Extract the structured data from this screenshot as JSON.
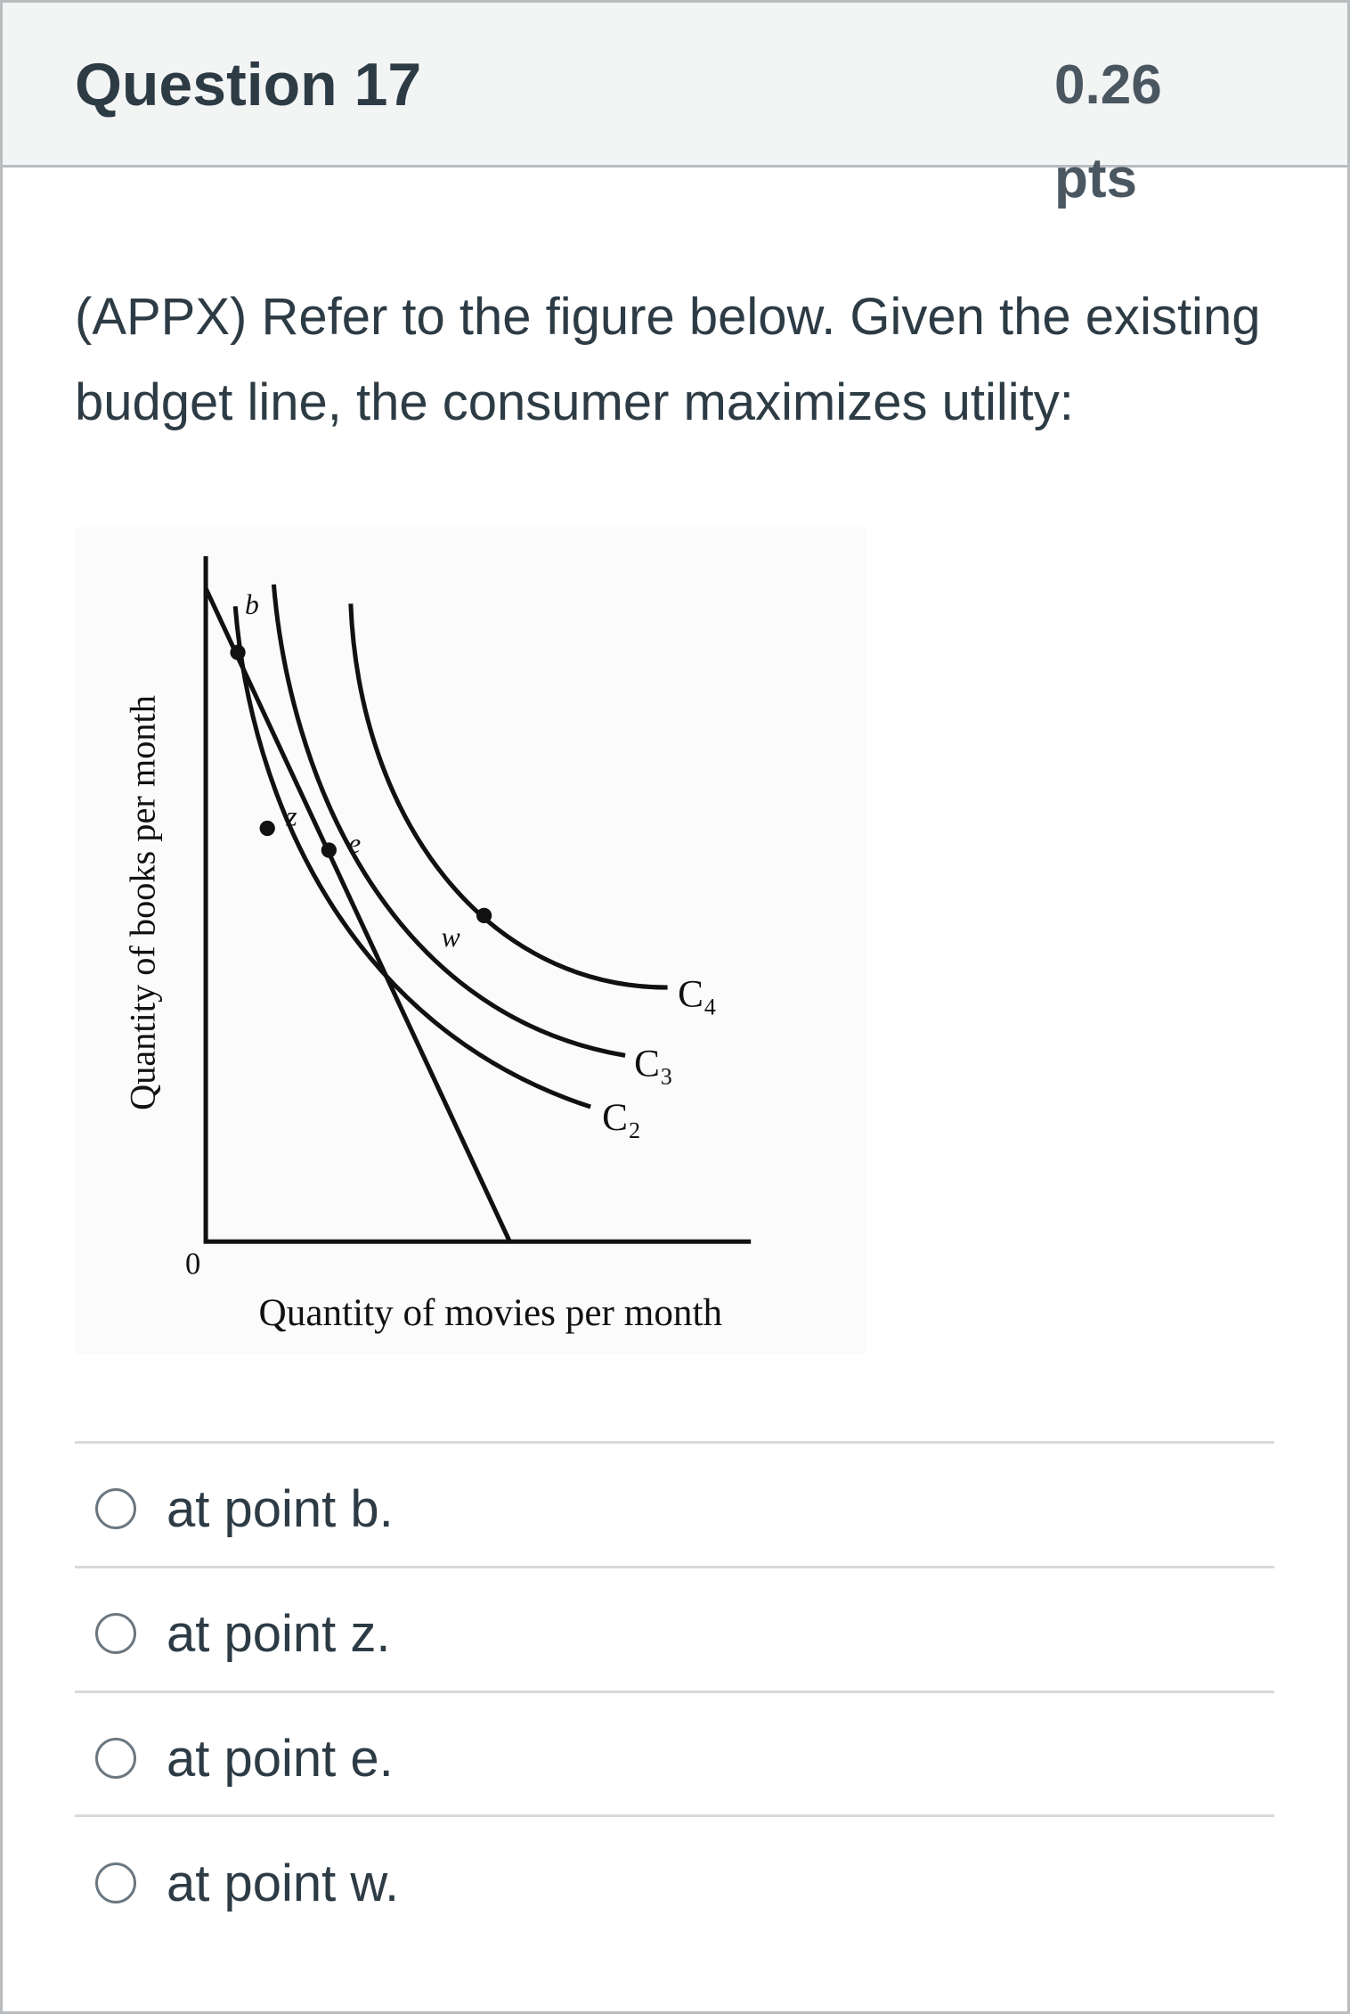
{
  "header": {
    "title": "Question 17",
    "points": "0.26 pts"
  },
  "question": {
    "text": "(APPX) Refer to the figure below. Given the existing budget line, the consumer maximizes utility:"
  },
  "figure": {
    "y_label": "Quantity of books per month",
    "x_label": "Quantity of movies per month",
    "origin": "0",
    "points": [
      "b",
      "z",
      "e",
      "w"
    ],
    "curves": [
      "C₄",
      "C₃",
      "C₂"
    ]
  },
  "options": [
    "at point b.",
    "at point z.",
    "at point e.",
    "at point w."
  ]
}
